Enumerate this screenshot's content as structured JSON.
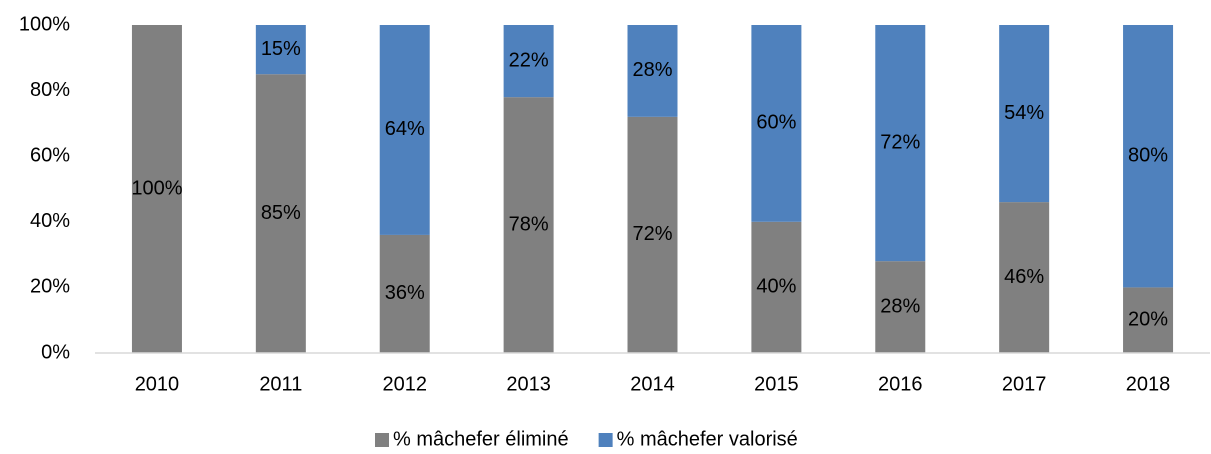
{
  "chart_data": {
    "type": "stacked_bar",
    "categories": [
      "2010",
      "2011",
      "2012",
      "2013",
      "2014",
      "2015",
      "2016",
      "2017",
      "2018"
    ],
    "series": [
      {
        "name": "% mâchefer éliminé",
        "color": "#808080",
        "values": [
          100,
          85,
          36,
          78,
          72,
          40,
          28,
          46,
          20
        ],
        "value_labels": [
          "100%",
          "85%",
          "36%",
          "78%",
          "72%",
          "40%",
          "28%",
          "46%",
          "20%"
        ]
      },
      {
        "name": "% mâchefer valorisé",
        "color": "#4f81bd",
        "values": [
          0,
          15,
          64,
          22,
          28,
          60,
          72,
          54,
          80
        ],
        "value_labels": [
          null,
          "15%",
          "64%",
          "22%",
          "28%",
          "60%",
          "72%",
          "54%",
          "80%"
        ]
      }
    ],
    "ylim": [
      0,
      100
    ],
    "yticks": [
      {
        "value": 0,
        "label": "0%"
      },
      {
        "value": 20,
        "label": "20%"
      },
      {
        "value": 40,
        "label": "40%"
      },
      {
        "value": 60,
        "label": "60%"
      },
      {
        "value": 80,
        "label": "80%"
      },
      {
        "value": 100,
        "label": "100%"
      }
    ],
    "grid": false,
    "legend": "bottom"
  }
}
